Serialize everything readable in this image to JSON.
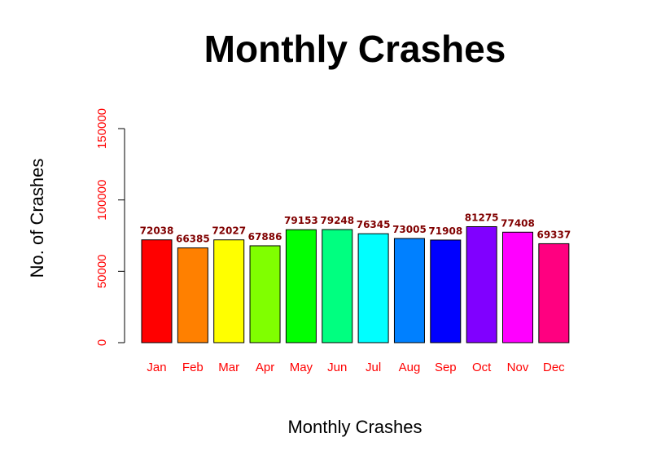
{
  "chart_data": {
    "type": "bar",
    "title": "Monthly Crashes",
    "xlabel": "Monthly Crashes",
    "ylabel": "No. of Crashes",
    "categories": [
      "Jan",
      "Feb",
      "Mar",
      "Apr",
      "May",
      "Jun",
      "Jul",
      "Aug",
      "Sep",
      "Oct",
      "Nov",
      "Dec"
    ],
    "values": [
      72038,
      66385,
      72027,
      67886,
      79153,
      79248,
      76345,
      73005,
      71908,
      81275,
      77408,
      69337
    ],
    "data_labels": [
      "72038",
      "66385",
      "72027",
      "67886",
      "79153",
      "79248",
      "76345",
      "73005",
      "71908",
      "81275",
      "77408",
      "69337"
    ],
    "colors": [
      "#FF0000",
      "#FF8000",
      "#FFFF00",
      "#80FF00",
      "#00FF00",
      "#00FF80",
      "#00FFFF",
      "#0080FF",
      "#0000FF",
      "#8000FF",
      "#FF00FF",
      "#FF0080"
    ],
    "ylim": [
      0,
      150000
    ],
    "yticks": [
      0,
      50000,
      100000,
      150000
    ],
    "ytick_labels": [
      "0",
      "50000",
      "100000",
      "150000"
    ],
    "tick_color": "#FF0000",
    "category_color": "#FF0000",
    "data_label_color": "#800000",
    "grid": false,
    "legend": "none"
  }
}
